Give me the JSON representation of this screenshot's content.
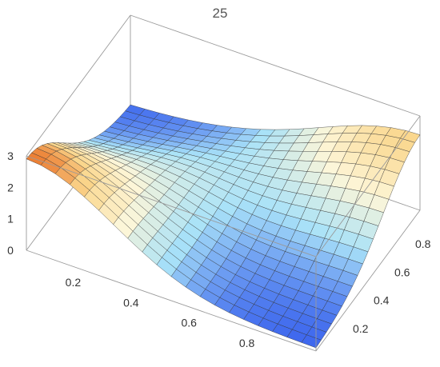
{
  "chart_data": {
    "type": "surface",
    "title": "25",
    "xlabel": "",
    "ylabel": "",
    "zlabel": "",
    "xlim": [
      0,
      1
    ],
    "ylim": [
      0,
      1
    ],
    "zlim": [
      0,
      3
    ],
    "x_ticks": [
      "0.2",
      "0.4",
      "0.6",
      "0.8"
    ],
    "y_ticks": [
      "0.2",
      "0.4",
      "0.6",
      "0.8"
    ],
    "z_ticks": [
      "0",
      "1",
      "2",
      "3"
    ],
    "mesh_lines": 21,
    "surface": {
      "z_at_corner_x0_y0": 2.9,
      "z_at_corner_x1_y0": 0.05,
      "z_at_corner_x0_y1": 0.05,
      "z_at_corner_x1_y1": 2.4,
      "z_at_center": 0.6
    },
    "colors": {
      "low": "#2f56ec",
      "mid": "#a9e2f8",
      "light": "#fdf6d8",
      "high": "#e8681d"
    },
    "grid": true,
    "legend": "none"
  }
}
